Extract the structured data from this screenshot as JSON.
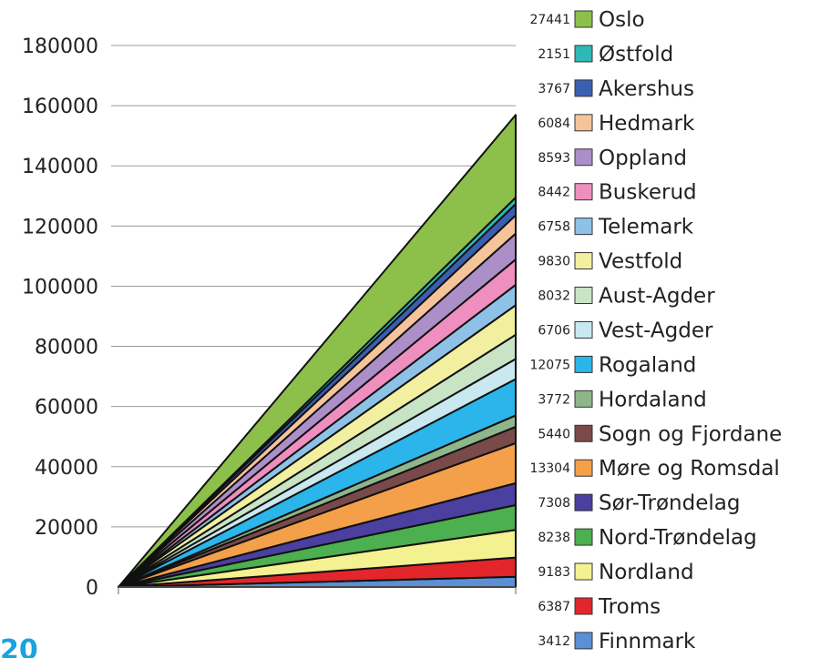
{
  "chart_data": {
    "type": "area",
    "stacked": true,
    "ylim": [
      0,
      180000
    ],
    "yticks": [
      0,
      20000,
      40000,
      60000,
      80000,
      100000,
      120000,
      140000,
      160000,
      180000
    ],
    "grid": true,
    "legend_position": "right",
    "series": [
      {
        "name": "Finnmark",
        "value": 3412,
        "value_label": "3412",
        "color": "#5b8fd6"
      },
      {
        "name": "Troms",
        "value": 6387,
        "value_label": "6387",
        "color": "#e3262b"
      },
      {
        "name": "Nordland",
        "value": 9183,
        "value_label": "9183",
        "color": "#f4f190"
      },
      {
        "name": "Nord-Trøndelag",
        "value": 8238,
        "value_label": "8238",
        "color": "#4caf50"
      },
      {
        "name": "Sør-Trøndelag",
        "value": 7308,
        "value_label": "7308",
        "color": "#4b3fa0"
      },
      {
        "name": "Møre og Romsdal",
        "value": 13304,
        "value_label": "13304",
        "color": "#f4a04a"
      },
      {
        "name": "Sogn og Fjordane",
        "value": 5440,
        "value_label": "5440",
        "color": "#7a4a4a"
      },
      {
        "name": "Hordaland",
        "value": 3772,
        "value_label": "3772",
        "color": "#8fb58a"
      },
      {
        "name": "Rogaland",
        "value": 12075,
        "value_label": "12075",
        "color": "#2bb5ea"
      },
      {
        "name": "Vest-Agder",
        "value": 6706,
        "value_label": "6706",
        "color": "#c9e8f0"
      },
      {
        "name": "Aust-Agder",
        "value": 8032,
        "value_label": "8032",
        "color": "#c8e4c4"
      },
      {
        "name": "Vestfold",
        "value": 9830,
        "value_label": "9830",
        "color": "#f2f0a0"
      },
      {
        "name": "Telemark",
        "value": 6758,
        "value_label": "6758",
        "color": "#8ec1e6"
      },
      {
        "name": "Buskerud",
        "value": 8442,
        "value_label": "8442",
        "color": "#ee8fbf"
      },
      {
        "name": "Oppland",
        "value": 8593,
        "value_label": "8593",
        "color": "#ac8fc8"
      },
      {
        "name": "Hedmark",
        "value": 6084,
        "value_label": "6084",
        "color": "#f6c49a"
      },
      {
        "name": "Akershus",
        "value": 3767,
        "value_label": "3767",
        "color": "#3a5fb0"
      },
      {
        "name": "Østfold",
        "value": 2151,
        "value_label": "2151",
        "color": "#2fb8b8"
      },
      {
        "name": "Oslo",
        "value": 27441,
        "value_label": "27441",
        "color": "#8cc04a"
      }
    ]
  },
  "corner_text": "20"
}
